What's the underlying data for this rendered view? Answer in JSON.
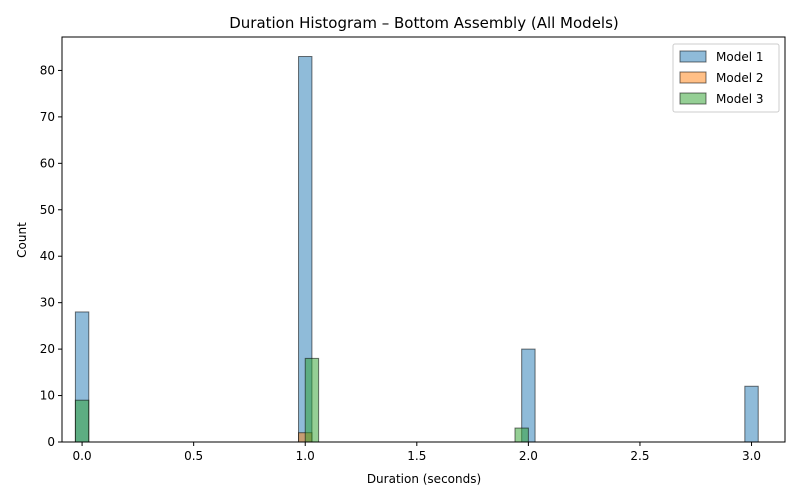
{
  "chart_data": {
    "type": "bar",
    "title": "Duration Histogram – Bottom Assembly (All Models)",
    "xlabel": "Duration (seconds)",
    "ylabel": "Count",
    "xlim": [
      -0.09,
      3.15
    ],
    "ylim": [
      0,
      87.2
    ],
    "xticks": [
      "0.0",
      "0.5",
      "1.0",
      "1.5",
      "2.0",
      "2.5",
      "3.0"
    ],
    "yticks": [
      "0",
      "10",
      "20",
      "30",
      "40",
      "50",
      "60",
      "70",
      "80"
    ],
    "grid": false,
    "legend_position": "top-right",
    "bin_width": 0.06,
    "series": [
      {
        "name": "Model 1",
        "color": "#1f77b4",
        "bins": [
          {
            "x": 0.0,
            "count": 28
          },
          {
            "x": 1.0,
            "count": 83
          },
          {
            "x": 2.0,
            "count": 20
          },
          {
            "x": 3.0,
            "count": 12
          }
        ]
      },
      {
        "name": "Model 2",
        "color": "#ff7f0e",
        "bins": [
          {
            "x": 1.0,
            "count": 2
          }
        ]
      },
      {
        "name": "Model 3",
        "color": "#2ca02c",
        "bins": [
          {
            "x": 0.0,
            "count": 9
          },
          {
            "x": 1.03,
            "count": 18
          },
          {
            "x": 1.97,
            "count": 3
          }
        ]
      }
    ]
  }
}
